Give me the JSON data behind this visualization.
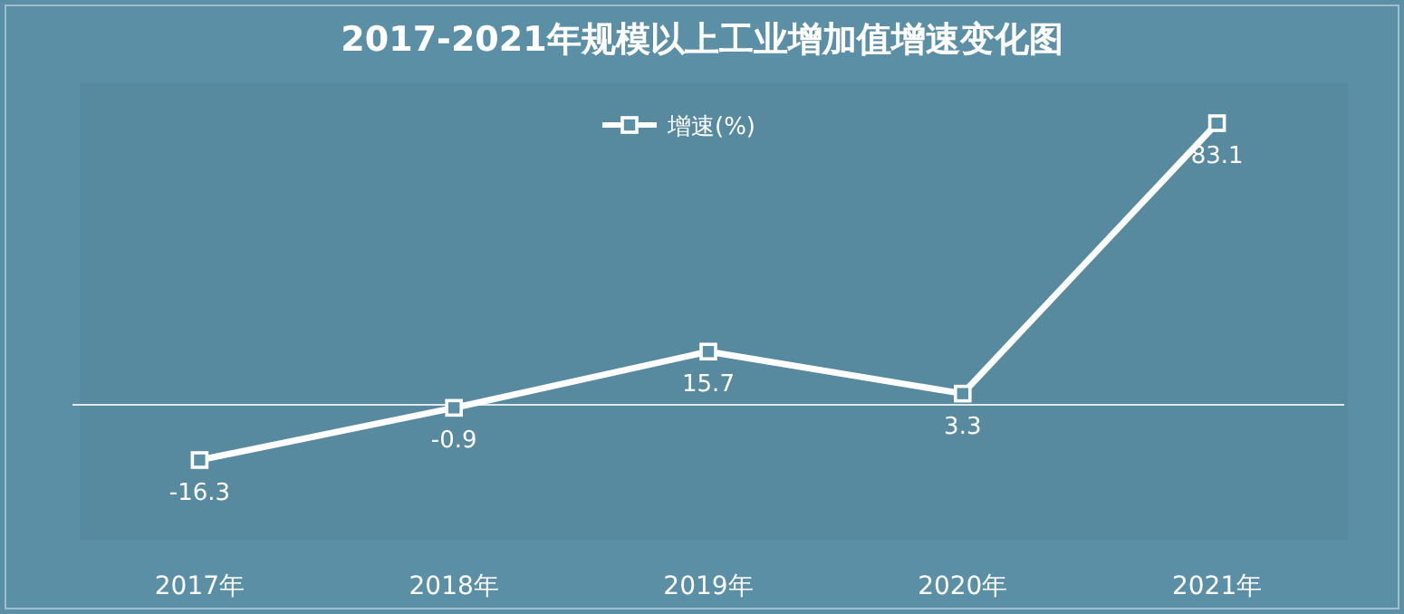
{
  "chart_data": {
    "type": "line",
    "title": "2017-2021年规模以上工业增加值增速变化图",
    "categories": [
      "2017年",
      "2018年",
      "2019年",
      "2020年",
      "2021年"
    ],
    "series": [
      {
        "name": "增速(%)",
        "color": "#ffffff",
        "values": [
          -16.3,
          -0.9,
          15.7,
          3.3,
          83.1
        ]
      }
    ],
    "data_labels": true,
    "marker": "square",
    "legend": "top",
    "line_style": "solid"
  }
}
